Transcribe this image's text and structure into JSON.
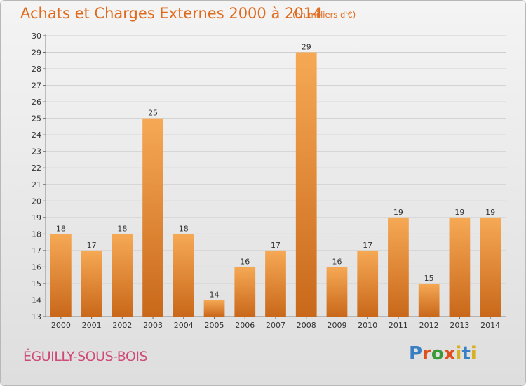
{
  "title": "Achats et Charges Externes 2000 à 2014",
  "unit": "(en milliers d'€)",
  "city": "ÉGUILLY-SOUS-BOIS",
  "logo": {
    "letters": [
      "P",
      "r",
      "o",
      "x",
      "i",
      "t",
      "i"
    ],
    "colors": [
      "#3a7fc4",
      "#e0501c",
      "#3a9a3a",
      "#e0501c",
      "#d8b020",
      "#3a7fc4",
      "#d8b020"
    ]
  },
  "colors": {
    "bar_light": "#f6a955",
    "bar_dark": "#c9681a",
    "grid": "#cfcfcf",
    "accent": "#e06a1c"
  },
  "chart_data": {
    "type": "bar",
    "categories": [
      "2000",
      "2001",
      "2002",
      "2003",
      "2004",
      "2005",
      "2006",
      "2007",
      "2008",
      "2009",
      "2010",
      "2011",
      "2012",
      "2013",
      "2014"
    ],
    "values": [
      18,
      17,
      18,
      25,
      18,
      14,
      16,
      17,
      29,
      16,
      17,
      19,
      15,
      19,
      19
    ],
    "ylim": [
      13,
      30
    ],
    "yticks": [
      13,
      14,
      15,
      16,
      17,
      18,
      19,
      20,
      21,
      22,
      23,
      24,
      25,
      26,
      27,
      28,
      29,
      30
    ],
    "grid": true
  }
}
